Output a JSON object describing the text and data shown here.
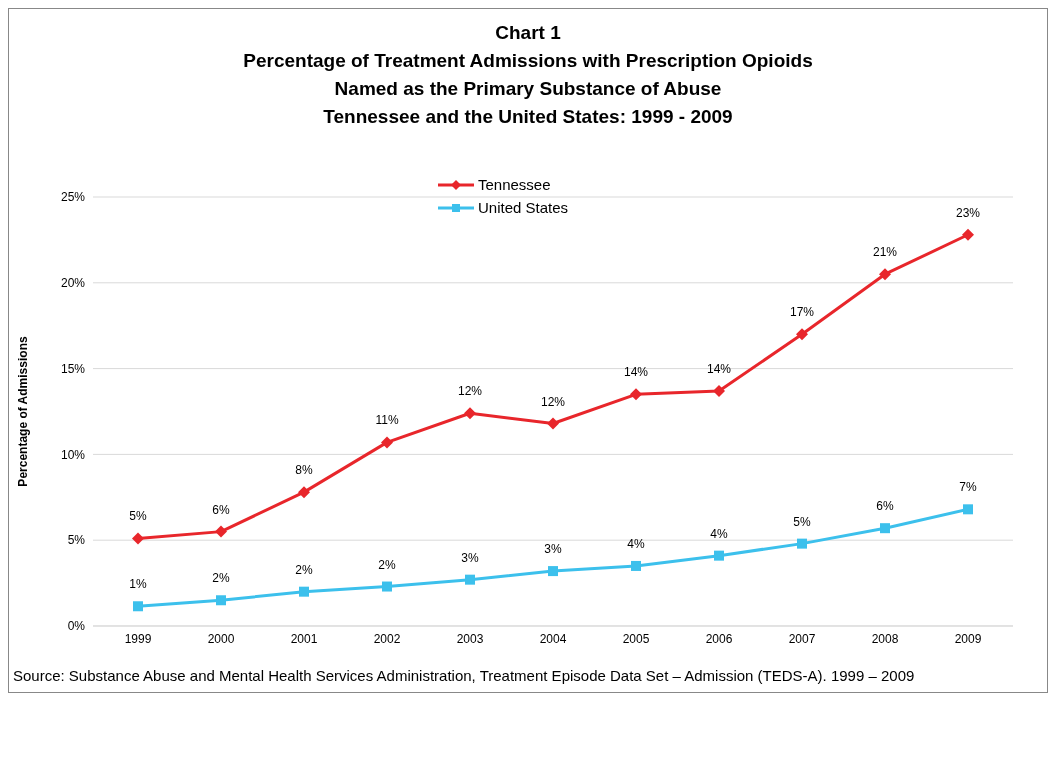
{
  "chart_data": {
    "type": "line",
    "title": "Chart 1\nPercentage of Treatment Admissions with Prescription Opioids\nNamed as the Primary Substance of Abuse\nTennessee and the United States:  1999 - 2009",
    "ylabel": "Percentage of Admissions",
    "categories": [
      "1999",
      "2000",
      "2001",
      "2002",
      "2003",
      "2004",
      "2005",
      "2006",
      "2007",
      "2008",
      "2009"
    ],
    "series": [
      {
        "name": "Tennessee",
        "color": "#e8262b",
        "marker": "diamond",
        "values": [
          5.1,
          5.5,
          7.8,
          10.7,
          12.4,
          11.8,
          13.5,
          13.7,
          17.0,
          20.5,
          22.8
        ],
        "value_labels": [
          "5%",
          "6%",
          "8%",
          "11%",
          "12%",
          "12%",
          "14%",
          "14%",
          "17%",
          "21%",
          "23%"
        ]
      },
      {
        "name": "United States",
        "color": "#3cc0ec",
        "marker": "square",
        "values": [
          1.15,
          1.5,
          2.0,
          2.3,
          2.7,
          3.2,
          3.5,
          4.1,
          4.8,
          5.7,
          6.8
        ],
        "value_labels": [
          "1%",
          "2%",
          "2%",
          "2%",
          "3%",
          "3%",
          "4%",
          "4%",
          "5%",
          "6%",
          "7%"
        ]
      }
    ],
    "ylim": [
      0,
      25
    ],
    "yticks": [
      {
        "value": 0,
        "label": "0%"
      },
      {
        "value": 5,
        "label": "5%"
      },
      {
        "value": 10,
        "label": "10%"
      },
      {
        "value": 15,
        "label": "15%"
      },
      {
        "value": 20,
        "label": "20%"
      },
      {
        "value": 25,
        "label": "25%"
      }
    ],
    "grid": "y",
    "legend": "top",
    "line_style": "solid",
    "annotations": [
      "Source:  Substance Abuse and Mental Health Services Administration, Treatment Episode Data Set – Admission (TEDS-A). 1999 – 2009"
    ]
  }
}
